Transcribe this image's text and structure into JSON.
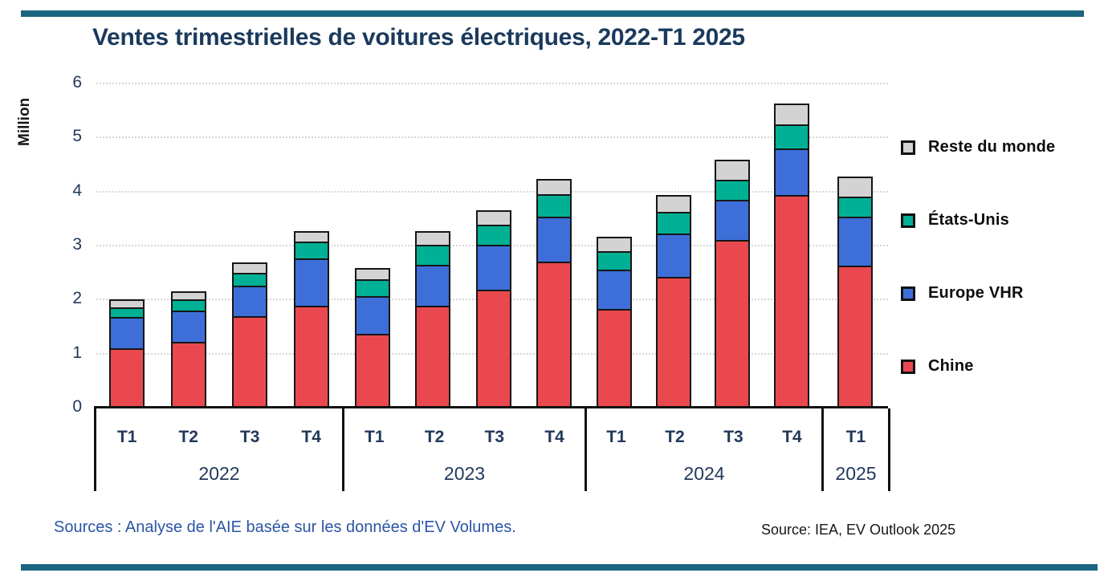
{
  "page": {
    "accent_bar_color": "#1A657F",
    "source_left": "Sources : Analyse de l'AIE basée sur les données d'EV Volumes.",
    "source_right": "Source: IEA, EV Outlook 2025"
  },
  "chart_data": {
    "type": "bar",
    "stacked": true,
    "title": "Ventes trimestrielles de voitures électriques, 2022-T1 2025",
    "xlabel": "",
    "ylabel": "Million",
    "ylim": [
      0,
      6
    ],
    "yticks": [
      0,
      1,
      2,
      3,
      4,
      5,
      6
    ],
    "grid": "horizontal",
    "legend_position": "right",
    "categories": [
      "T1 2022",
      "T2 2022",
      "T3 2022",
      "T4 2022",
      "T1 2023",
      "T2 2023",
      "T3 2023",
      "T4 2023",
      "T1 2024",
      "T2 2024",
      "T3 2024",
      "T4 2024",
      "T1 2025"
    ],
    "groups": [
      {
        "year": "2022",
        "quarters": [
          "T1",
          "T2",
          "T3",
          "T4"
        ]
      },
      {
        "year": "2023",
        "quarters": [
          "T1",
          "T2",
          "T3",
          "T4"
        ]
      },
      {
        "year": "2024",
        "quarters": [
          "T1",
          "T2",
          "T3",
          "T4"
        ]
      },
      {
        "year": "2025",
        "quarters": [
          "T1"
        ]
      }
    ],
    "series": [
      {
        "name": "Chine",
        "color": "#E9494E",
        "values": [
          1.1,
          1.22,
          1.7,
          1.88,
          1.36,
          1.88,
          2.18,
          2.7,
          1.83,
          2.42,
          3.11,
          3.94,
          2.63
        ]
      },
      {
        "name": "Europe VHR",
        "color": "#3E6FD9",
        "values": [
          0.58,
          0.58,
          0.56,
          0.88,
          0.71,
          0.76,
          0.83,
          0.84,
          0.73,
          0.8,
          0.73,
          0.85,
          0.9
        ]
      },
      {
        "name": "États-Unis",
        "color": "#00B095",
        "values": [
          0.18,
          0.21,
          0.24,
          0.32,
          0.3,
          0.38,
          0.38,
          0.41,
          0.34,
          0.41,
          0.38,
          0.45,
          0.37
        ]
      },
      {
        "name": "Reste du monde",
        "color": "#D3D3D3",
        "values": [
          0.14,
          0.15,
          0.19,
          0.18,
          0.21,
          0.24,
          0.27,
          0.28,
          0.27,
          0.31,
          0.37,
          0.39,
          0.38
        ]
      }
    ],
    "totals": [
      2.0,
      2.16,
      2.69,
      3.26,
      2.58,
      3.26,
      3.66,
      4.23,
      3.17,
      3.94,
      4.59,
      5.63,
      4.28
    ],
    "legend": [
      {
        "label": "Reste du monde",
        "color": "#D3D3D3"
      },
      {
        "label": "États-Unis",
        "color": "#00B095"
      },
      {
        "label": "Europe VHR",
        "color": "#3E6FD9"
      },
      {
        "label": "Chine",
        "color": "#E9494E"
      }
    ]
  }
}
